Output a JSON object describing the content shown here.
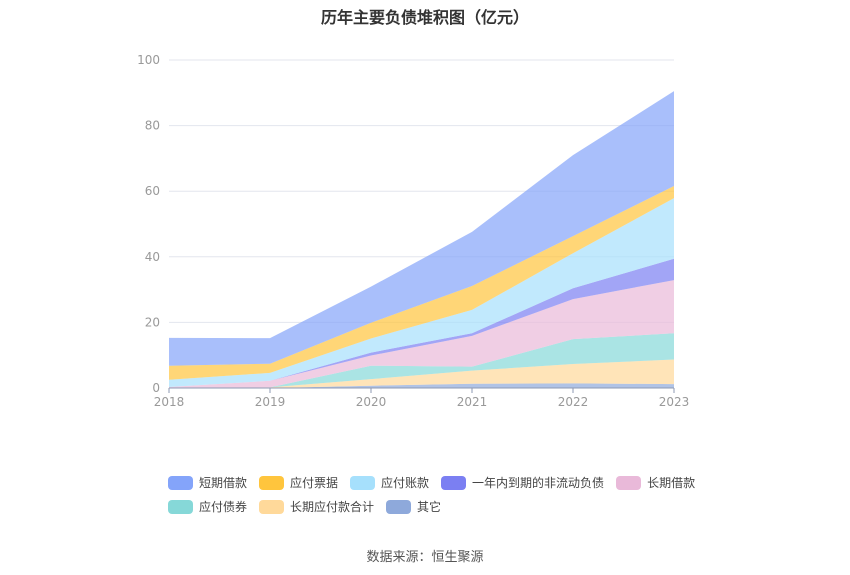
{
  "chart_data": {
    "type": "area",
    "stacked": true,
    "title": "历年主要负债堆积图（亿元）",
    "categories": [
      "2018",
      "2019",
      "2020",
      "2021",
      "2022",
      "2023"
    ],
    "ylim": [
      0,
      100
    ],
    "yticks": [
      0,
      20,
      40,
      60,
      80,
      100
    ],
    "grid": true,
    "legend_position": "bottom",
    "series": [
      {
        "name": "其它",
        "color": "#8ea9db",
        "values": [
          0,
          0,
          0.7,
          1.3,
          1.4,
          1.2
        ]
      },
      {
        "name": "长期应付款合计",
        "color": "#ffd99a",
        "values": [
          0,
          0.2,
          2.0,
          4.0,
          5.9,
          7.5
        ]
      },
      {
        "name": "应付债券",
        "color": "#86d8d8",
        "values": [
          0,
          0,
          4.1,
          1.2,
          7.6,
          8.0
        ]
      },
      {
        "name": "长期借款",
        "color": "#e9b9d9",
        "values": [
          0.3,
          2.0,
          3.1,
          9.4,
          12.2,
          16.2
        ]
      },
      {
        "name": "一年内到期的非流动负债",
        "color": "#7b7ff2",
        "values": [
          0,
          0,
          0.9,
          0.8,
          3.3,
          6.5
        ]
      },
      {
        "name": "应付账款",
        "color": "#a6e0fc",
        "values": [
          2.2,
          2.4,
          4.3,
          7.1,
          10.7,
          18.5
        ]
      },
      {
        "name": "应付票据",
        "color": "#ffc53d",
        "values": [
          4.3,
          2.8,
          4.8,
          7.3,
          5.2,
          3.7
        ]
      },
      {
        "name": "短期借款",
        "color": "#84a4fa",
        "values": [
          8.5,
          7.8,
          11.0,
          16.5,
          24.7,
          28.9
        ]
      }
    ],
    "legend_order": [
      "短期借款",
      "应付票据",
      "应付账款",
      "一年内到期的非流动负债",
      "长期借款",
      "应付债券",
      "长期应付款合计",
      "其它"
    ]
  },
  "source": "数据来源：恒生聚源"
}
